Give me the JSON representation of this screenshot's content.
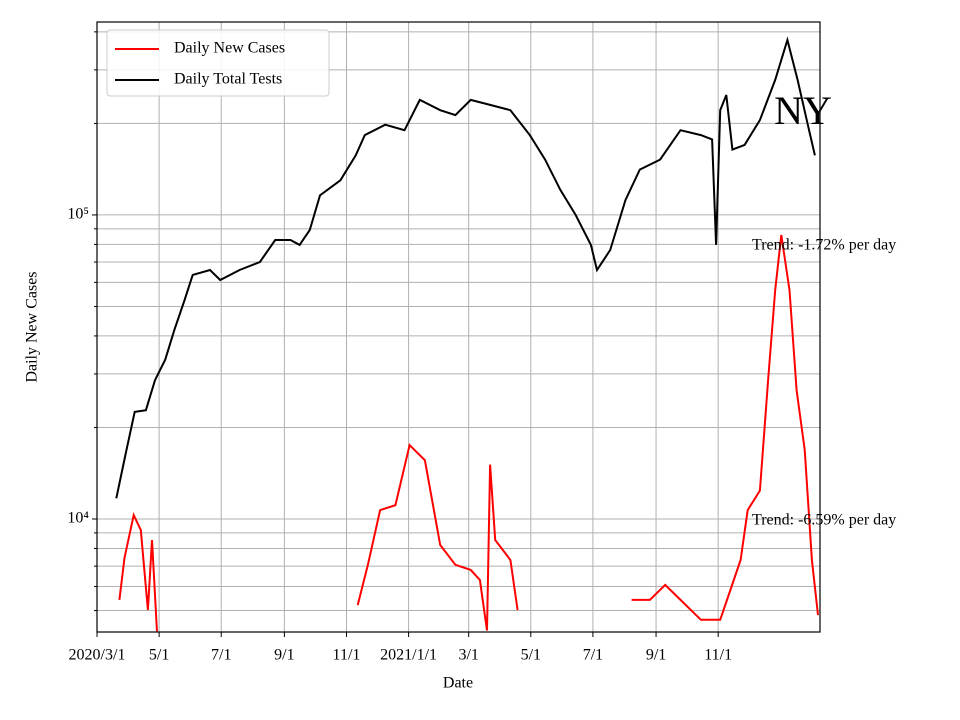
{
  "chart_data": {
    "type": "line",
    "title": "NY",
    "xlabel": "Date",
    "ylabel": "Daily New Cases",
    "annotations": [
      "Trend: -1.72% per day",
      "Trend: -6.59% per day"
    ],
    "xlim": [
      0,
      710
    ],
    "xticks": [
      {
        "value": 0,
        "label": "2020/3/1"
      },
      {
        "value": 61,
        "label": "5/1"
      },
      {
        "value": 122,
        "label": "7/1"
      },
      {
        "value": 184,
        "label": "9/1"
      },
      {
        "value": 245,
        "label": "11/1"
      },
      {
        "value": 306,
        "label": "2021/1/1"
      },
      {
        "value": 365,
        "label": "3/1"
      },
      {
        "value": 426,
        "label": "5/1"
      },
      {
        "value": 487,
        "label": "7/1"
      },
      {
        "value": 549,
        "label": "9/1"
      },
      {
        "value": 610,
        "label": "11/1"
      }
    ],
    "log_y": true,
    "ylim": [
      4250,
      431000
    ],
    "yticks": [
      {
        "value": 10000,
        "label": "10⁴"
      },
      {
        "value": 100000,
        "label": "10⁵"
      }
    ],
    "yminorticks": [
      5000,
      6000,
      7000,
      8000,
      9000,
      20000,
      30000,
      40000,
      50000,
      60000,
      70000,
      80000,
      90000,
      200000,
      300000,
      400000
    ],
    "grid": true,
    "legend": "upper left",
    "series": [
      {
        "name": "Daily New Cases",
        "color": "#ff0000",
        "x": [
          22,
          27,
          36,
          43,
          50,
          54,
          59,
          null,
          256,
          266,
          278,
          293,
          307,
          322,
          337,
          352,
          367,
          376,
          383,
          386,
          391,
          406,
          413,
          null,
          525,
          543,
          558,
          573,
          593,
          612,
          622,
          632,
          639,
          651,
          659,
          666,
          672,
          680,
          687,
          695,
          702,
          708
        ],
        "values": [
          5420,
          7450,
          10300,
          9200,
          5020,
          8530,
          4200,
          null,
          5210,
          7070,
          10700,
          11100,
          17500,
          15600,
          8210,
          7070,
          6800,
          6300,
          4300,
          15100,
          8530,
          7330,
          5020,
          null,
          5420,
          5420,
          6070,
          5420,
          4660,
          4660,
          5840,
          7330,
          10700,
          12400,
          28600,
          56600,
          85900,
          56600,
          26500,
          16900,
          7330,
          4830
        ]
      },
      {
        "name": "Daily Total Tests",
        "color": "#000000",
        "x": [
          19,
          28,
          37,
          48,
          57,
          67,
          76,
          86,
          94,
          111,
          121,
          140,
          160,
          175,
          190,
          199,
          209,
          219,
          239,
          254,
          263,
          283,
          302,
          317,
          337,
          352,
          367,
          386,
          406,
          425,
          440,
          455,
          470,
          485,
          491,
          504,
          519,
          533,
          553,
          573,
          593,
          604,
          608,
          612,
          618,
          624,
          636,
          651,
          666,
          678,
          688,
          698,
          705
        ],
        "values": [
          11700,
          16300,
          22500,
          22800,
          28600,
          33400,
          41900,
          52500,
          63500,
          65900,
          61100,
          65900,
          70000,
          82700,
          82700,
          79700,
          89300,
          116000,
          130000,
          157000,
          183000,
          198000,
          190000,
          239000,
          221000,
          213000,
          239000,
          230000,
          221000,
          183000,
          152000,
          121000,
          100000,
          79700,
          65900,
          76700,
          112000,
          141000,
          152000,
          190000,
          183000,
          177000,
          79700,
          221000,
          248000,
          164000,
          170000,
          205000,
          278000,
          376000,
          278000,
          198000,
          157000
        ]
      }
    ]
  }
}
